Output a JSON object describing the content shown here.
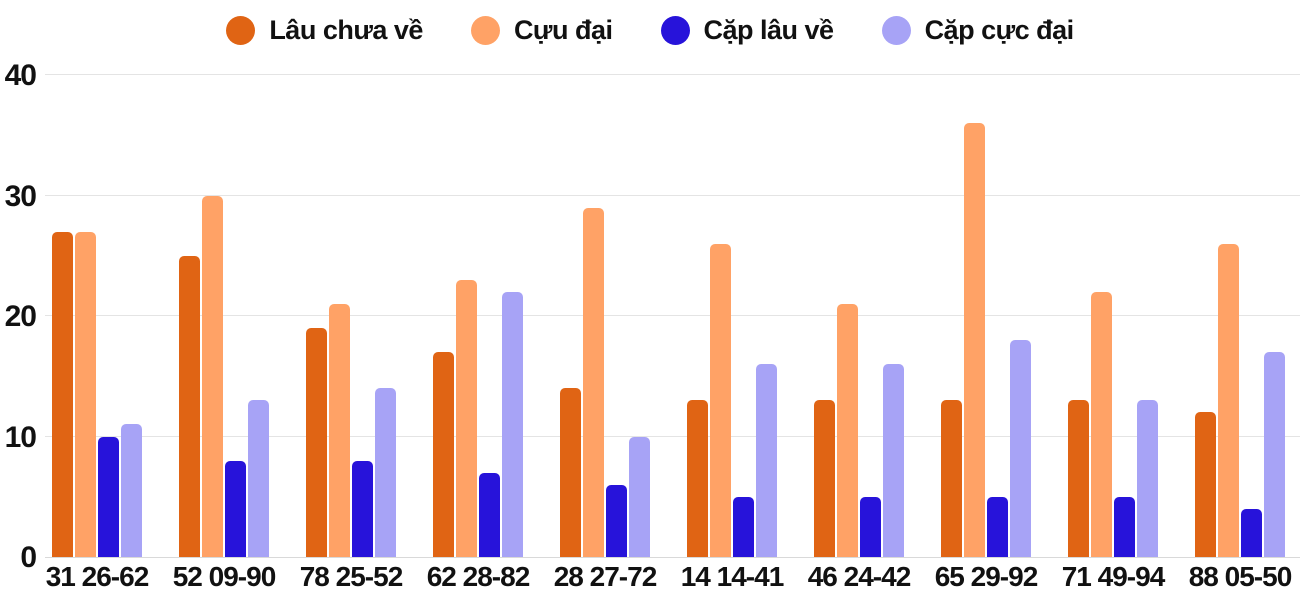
{
  "legend": [
    {
      "label": "Lâu chưa về",
      "color": "#E06414"
    },
    {
      "label": "Cựu đại",
      "color": "#FFA266"
    },
    {
      "label": "Cặp lâu về",
      "color": "#2713DA"
    },
    {
      "label": "Cặp cực đại",
      "color": "#A7A3F6"
    }
  ],
  "chart_data": {
    "type": "bar",
    "title": "",
    "xlabel": "",
    "ylabel": "",
    "categories": [
      "31 26-62",
      "52 09-90",
      "78 25-52",
      "62 28-82",
      "28 27-72",
      "14 14-41",
      "46 24-42",
      "65 29-92",
      "71 49-94",
      "88 05-50"
    ],
    "series": [
      {
        "name": "Lâu chưa về",
        "color": "#E06414",
        "values": [
          27,
          25,
          19,
          17,
          14,
          13,
          13,
          13,
          13,
          12
        ]
      },
      {
        "name": "Cựu đại",
        "color": "#FFA266",
        "values": [
          27,
          30,
          21,
          23,
          29,
          26,
          21,
          36,
          22,
          26
        ]
      },
      {
        "name": "Cặp lâu về",
        "color": "#2713DA",
        "values": [
          10,
          8,
          8,
          7,
          6,
          5,
          5,
          5,
          5,
          4
        ]
      },
      {
        "name": "Cặp cực đại",
        "color": "#A7A3F6",
        "values": [
          11,
          13,
          14,
          22,
          10,
          16,
          16,
          18,
          13,
          17
        ]
      }
    ],
    "ylim": [
      0,
      40
    ],
    "yticks": [
      0,
      10,
      20,
      30,
      40
    ],
    "grid": "horizontal",
    "legend_position": "top",
    "colors": {
      "gridline": "#E4E4E4",
      "baseline": "#D9D9D9",
      "text": "#111111",
      "background": "#FFFFFF"
    }
  }
}
